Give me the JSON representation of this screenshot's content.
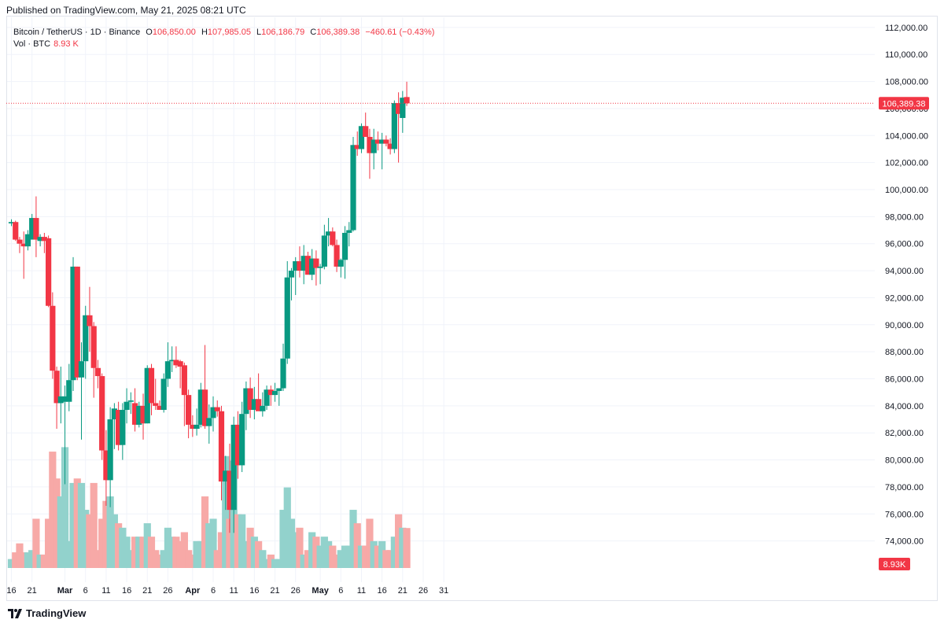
{
  "header": {
    "published": "Published on TradingView.com, May 21, 2025 08:21 UTC"
  },
  "legend": {
    "symbol": "Bitcoin / TetherUS · 1D · Binance",
    "open_label": "O",
    "open": "106,850.00",
    "high_label": "H",
    "high": "107,985.05",
    "low_label": "L",
    "low": "106,186.79",
    "close_label": "C",
    "close": "106,389.38",
    "change": "−460.61 (−0.43%)",
    "vol_label": "Vol · BTC",
    "vol_value": "8.93 K"
  },
  "brand": {
    "name": "TradingView"
  },
  "colors": {
    "up": "#089981",
    "down": "#f23645",
    "vol_up": "#92d2cc",
    "vol_down": "#f7a9a7",
    "grid": "#f0f3fa",
    "text": "#131722"
  },
  "chart_data": {
    "type": "candlestick",
    "title": "Bitcoin / TetherUS · 1D · Binance",
    "grid": true,
    "yaxis": {
      "ticks": [
        74000,
        76000,
        78000,
        80000,
        82000,
        84000,
        86000,
        88000,
        90000,
        92000,
        94000,
        96000,
        98000,
        100000,
        102000,
        104000,
        106000,
        108000,
        110000,
        112000
      ],
      "tick_labels": [
        "74,000.00",
        "76,000.00",
        "78,000.00",
        "80,000.00",
        "82,000.00",
        "84,000.00",
        "86,000.00",
        "88,000.00",
        "90,000.00",
        "92,000.00",
        "94,000.00",
        "96,000.00",
        "98,000.00",
        "100,000.00",
        "102,000.00",
        "104,000.00",
        "106,000.00",
        "108,000.00",
        "110,000.00",
        "112,000.00"
      ],
      "range": [
        72000,
        112400
      ],
      "last_price": 106389.38,
      "last_price_label": "106,389.38"
    },
    "xaxis": {
      "tick_labels": [
        "16",
        "21",
        "Mar",
        "6",
        "11",
        "16",
        "21",
        "26",
        "Apr",
        "6",
        "11",
        "16",
        "21",
        "26",
        "May",
        "6",
        "11",
        "16",
        "21",
        "26",
        "31"
      ],
      "tick_day_index": [
        0,
        5,
        13,
        18,
        23,
        28,
        33,
        38,
        44,
        49,
        54,
        59,
        64,
        69,
        75,
        80,
        85,
        90,
        95,
        100,
        105
      ]
    },
    "volume_badge": "8.93K",
    "volume_max": 29,
    "candles": [
      {
        "o": 97500,
        "h": 97800,
        "l": 97300,
        "c": 97600,
        "v": 2
      },
      {
        "o": 97600,
        "h": 97700,
        "l": 96200,
        "c": 96300,
        "v": 3.5
      },
      {
        "o": 96300,
        "h": 96500,
        "l": 95300,
        "c": 96000,
        "v": 5.5
      },
      {
        "o": 96000,
        "h": 96900,
        "l": 93400,
        "c": 95800,
        "v": 3.5
      },
      {
        "o": 95800,
        "h": 97000,
        "l": 95500,
        "c": 96700,
        "v": 3.5
      },
      {
        "o": 96300,
        "h": 98200,
        "l": 96300,
        "c": 97900,
        "v": 4
      },
      {
        "o": 97900,
        "h": 99500,
        "l": 95000,
        "c": 96300,
        "v": 11
      },
      {
        "o": 96200,
        "h": 96700,
        "l": 95800,
        "c": 96500,
        "v": 3
      },
      {
        "o": 96500,
        "h": 96800,
        "l": 95300,
        "c": 96200,
        "v": 3
      },
      {
        "o": 96400,
        "h": 96600,
        "l": 91300,
        "c": 91400,
        "v": 11
      },
      {
        "o": 91400,
        "h": 92400,
        "l": 86000,
        "c": 86600,
        "v": 26
      },
      {
        "o": 86600,
        "h": 86900,
        "l": 82300,
        "c": 84200,
        "v": 20
      },
      {
        "o": 84200,
        "h": 86900,
        "l": 82700,
        "c": 84700,
        "v": 16
      },
      {
        "o": 84300,
        "h": 85500,
        "l": 78200,
        "c": 84700,
        "v": 27
      },
      {
        "o": 84300,
        "h": 87100,
        "l": 83600,
        "c": 85900,
        "v": 6
      },
      {
        "o": 85900,
        "h": 95000,
        "l": 85100,
        "c": 94300,
        "v": 19
      },
      {
        "o": 94300,
        "h": 94300,
        "l": 85900,
        "c": 86100,
        "v": 20
      },
      {
        "o": 86100,
        "h": 88700,
        "l": 81500,
        "c": 87300,
        "v": 19
      },
      {
        "o": 87300,
        "h": 91400,
        "l": 86000,
        "c": 90700,
        "v": 13
      },
      {
        "o": 90700,
        "h": 92800,
        "l": 88000,
        "c": 89900,
        "v": 12
      },
      {
        "o": 89900,
        "h": 90200,
        "l": 84600,
        "c": 86800,
        "v": 19
      },
      {
        "o": 86800,
        "h": 87400,
        "l": 85300,
        "c": 86200,
        "v": 4
      },
      {
        "o": 86200,
        "h": 86400,
        "l": 80000,
        "c": 80700,
        "v": 11
      },
      {
        "o": 80700,
        "h": 82200,
        "l": 76600,
        "c": 78500,
        "v": 15
      },
      {
        "o": 78500,
        "h": 83900,
        "l": 76500,
        "c": 83000,
        "v": 16
      },
      {
        "o": 83000,
        "h": 84200,
        "l": 80800,
        "c": 83800,
        "v": 12
      },
      {
        "o": 83700,
        "h": 84300,
        "l": 80700,
        "c": 81100,
        "v": 10
      },
      {
        "o": 81100,
        "h": 84200,
        "l": 80000,
        "c": 83700,
        "v": 9
      },
      {
        "o": 83700,
        "h": 85300,
        "l": 82700,
        "c": 84300,
        "v": 7
      },
      {
        "o": 84300,
        "h": 85000,
        "l": 83400,
        "c": 84400,
        "v": 4
      },
      {
        "o": 84200,
        "h": 85300,
        "l": 82100,
        "c": 82600,
        "v": 7
      },
      {
        "o": 82600,
        "h": 84300,
        "l": 82400,
        "c": 84000,
        "v": 7
      },
      {
        "o": 84000,
        "h": 84900,
        "l": 81500,
        "c": 82700,
        "v": 7
      },
      {
        "o": 82700,
        "h": 87000,
        "l": 82700,
        "c": 86800,
        "v": 10
      },
      {
        "o": 86800,
        "h": 87100,
        "l": 83300,
        "c": 84200,
        "v": 7
      },
      {
        "o": 84200,
        "h": 86000,
        "l": 83700,
        "c": 84000,
        "v": 4
      },
      {
        "o": 84000,
        "h": 84400,
        "l": 83700,
        "c": 83700,
        "v": 3
      },
      {
        "o": 83700,
        "h": 86400,
        "l": 83500,
        "c": 86000,
        "v": 4
      },
      {
        "o": 86000,
        "h": 88700,
        "l": 85400,
        "c": 87300,
        "v": 9
      },
      {
        "o": 87300,
        "h": 88400,
        "l": 86500,
        "c": 87400,
        "v": 7
      },
      {
        "o": 87400,
        "h": 88400,
        "l": 86800,
        "c": 87000,
        "v": 7
      },
      {
        "o": 87300,
        "h": 87400,
        "l": 85300,
        "c": 86900,
        "v": 6
      },
      {
        "o": 87000,
        "h": 87200,
        "l": 82500,
        "c": 84800,
        "v": 8
      },
      {
        "o": 84800,
        "h": 85200,
        "l": 81600,
        "c": 82600,
        "v": 4
      },
      {
        "o": 82600,
        "h": 83300,
        "l": 81700,
        "c": 82300,
        "v": 3
      },
      {
        "o": 82300,
        "h": 83800,
        "l": 81800,
        "c": 82600,
        "v": 6
      },
      {
        "o": 82600,
        "h": 85700,
        "l": 82400,
        "c": 85200,
        "v": 6
      },
      {
        "o": 85200,
        "h": 88500,
        "l": 82300,
        "c": 82500,
        "v": 16
      },
      {
        "o": 82500,
        "h": 84100,
        "l": 81200,
        "c": 83100,
        "v": 10
      },
      {
        "o": 83100,
        "h": 84700,
        "l": 82100,
        "c": 83900,
        "v": 11
      },
      {
        "o": 83900,
        "h": 84400,
        "l": 83200,
        "c": 83600,
        "v": 4
      },
      {
        "o": 83600,
        "h": 84000,
        "l": 77000,
        "c": 78400,
        "v": 8
      },
      {
        "o": 78400,
        "h": 80300,
        "l": 76300,
        "c": 79200,
        "v": 25
      },
      {
        "o": 79200,
        "h": 81200,
        "l": 74600,
        "c": 76300,
        "v": 11
      },
      {
        "o": 76300,
        "h": 83200,
        "l": 74600,
        "c": 82600,
        "v": 24
      },
      {
        "o": 82600,
        "h": 83600,
        "l": 78600,
        "c": 79600,
        "v": 12
      },
      {
        "o": 79600,
        "h": 84300,
        "l": 79100,
        "c": 83400,
        "v": 12
      },
      {
        "o": 83400,
        "h": 85800,
        "l": 82200,
        "c": 85300,
        "v": 6
      },
      {
        "o": 85300,
        "h": 86100,
        "l": 83100,
        "c": 83700,
        "v": 9
      },
      {
        "o": 83700,
        "h": 85400,
        "l": 83000,
        "c": 84500,
        "v": 7
      },
      {
        "o": 84500,
        "h": 86400,
        "l": 83800,
        "c": 83600,
        "v": 6
      },
      {
        "o": 83600,
        "h": 85000,
        "l": 83200,
        "c": 84000,
        "v": 4
      },
      {
        "o": 84000,
        "h": 85500,
        "l": 83700,
        "c": 85200,
        "v": 2
      },
      {
        "o": 85200,
        "h": 85500,
        "l": 84000,
        "c": 84800,
        "v": 3
      },
      {
        "o": 84800,
        "h": 85700,
        "l": 84300,
        "c": 85100,
        "v": 2
      },
      {
        "o": 85100,
        "h": 85300,
        "l": 84000,
        "c": 85300,
        "v": 2
      },
      {
        "o": 85300,
        "h": 88600,
        "l": 85100,
        "c": 87500,
        "v": 13
      },
      {
        "o": 87500,
        "h": 94700,
        "l": 87100,
        "c": 93500,
        "v": 18
      },
      {
        "o": 93500,
        "h": 94200,
        "l": 91800,
        "c": 94000,
        "v": 11
      },
      {
        "o": 94000,
        "h": 95000,
        "l": 92200,
        "c": 94700,
        "v": 8
      },
      {
        "o": 94700,
        "h": 95800,
        "l": 93500,
        "c": 94000,
        "v": 9
      },
      {
        "o": 94000,
        "h": 95900,
        "l": 93000,
        "c": 95100,
        "v": 3
      },
      {
        "o": 95100,
        "h": 95400,
        "l": 93800,
        "c": 93700,
        "v": 4
      },
      {
        "o": 93700,
        "h": 95600,
        "l": 93300,
        "c": 94900,
        "v": 8
      },
      {
        "o": 94900,
        "h": 95500,
        "l": 92900,
        "c": 94200,
        "v": 7
      },
      {
        "o": 94200,
        "h": 94500,
        "l": 93000,
        "c": 94300,
        "v": 5
      },
      {
        "o": 94300,
        "h": 97400,
        "l": 94100,
        "c": 96600,
        "v": 7
      },
      {
        "o": 96600,
        "h": 97900,
        "l": 95800,
        "c": 96900,
        "v": 6
      },
      {
        "o": 96900,
        "h": 97200,
        "l": 95800,
        "c": 95900,
        "v": 5
      },
      {
        "o": 95900,
        "h": 96300,
        "l": 93900,
        "c": 94300,
        "v": 3
      },
      {
        "o": 94300,
        "h": 94900,
        "l": 93500,
        "c": 94800,
        "v": 4
      },
      {
        "o": 94800,
        "h": 97300,
        "l": 93400,
        "c": 96800,
        "v": 5
      },
      {
        "o": 96800,
        "h": 97600,
        "l": 95800,
        "c": 97000,
        "v": 5
      },
      {
        "o": 97000,
        "h": 103900,
        "l": 96900,
        "c": 103300,
        "v": 13
      },
      {
        "o": 103300,
        "h": 104300,
        "l": 102500,
        "c": 103000,
        "v": 10
      },
      {
        "o": 103000,
        "h": 104900,
        "l": 102700,
        "c": 104700,
        "v": 5
      },
      {
        "o": 104700,
        "h": 105700,
        "l": 103900,
        "c": 103900,
        "v": 5
      },
      {
        "o": 103900,
        "h": 104500,
        "l": 100800,
        "c": 102700,
        "v": 11
      },
      {
        "o": 102700,
        "h": 104500,
        "l": 101500,
        "c": 103700,
        "v": 6
      },
      {
        "o": 103700,
        "h": 104300,
        "l": 102900,
        "c": 103400,
        "v": 5
      },
      {
        "o": 103400,
        "h": 104200,
        "l": 101500,
        "c": 103700,
        "v": 6
      },
      {
        "o": 103700,
        "h": 104000,
        "l": 103200,
        "c": 103400,
        "v": 4
      },
      {
        "o": 103400,
        "h": 103800,
        "l": 102600,
        "c": 103000,
        "v": 4
      },
      {
        "o": 103000,
        "h": 106600,
        "l": 102700,
        "c": 106400,
        "v": 7
      },
      {
        "o": 106400,
        "h": 107200,
        "l": 102000,
        "c": 105600,
        "v": 12
      },
      {
        "o": 105300,
        "h": 107300,
        "l": 104200,
        "c": 106800,
        "v": 9
      },
      {
        "o": 106850,
        "h": 107985,
        "l": 106187,
        "c": 106389,
        "v": 8.93
      }
    ]
  }
}
